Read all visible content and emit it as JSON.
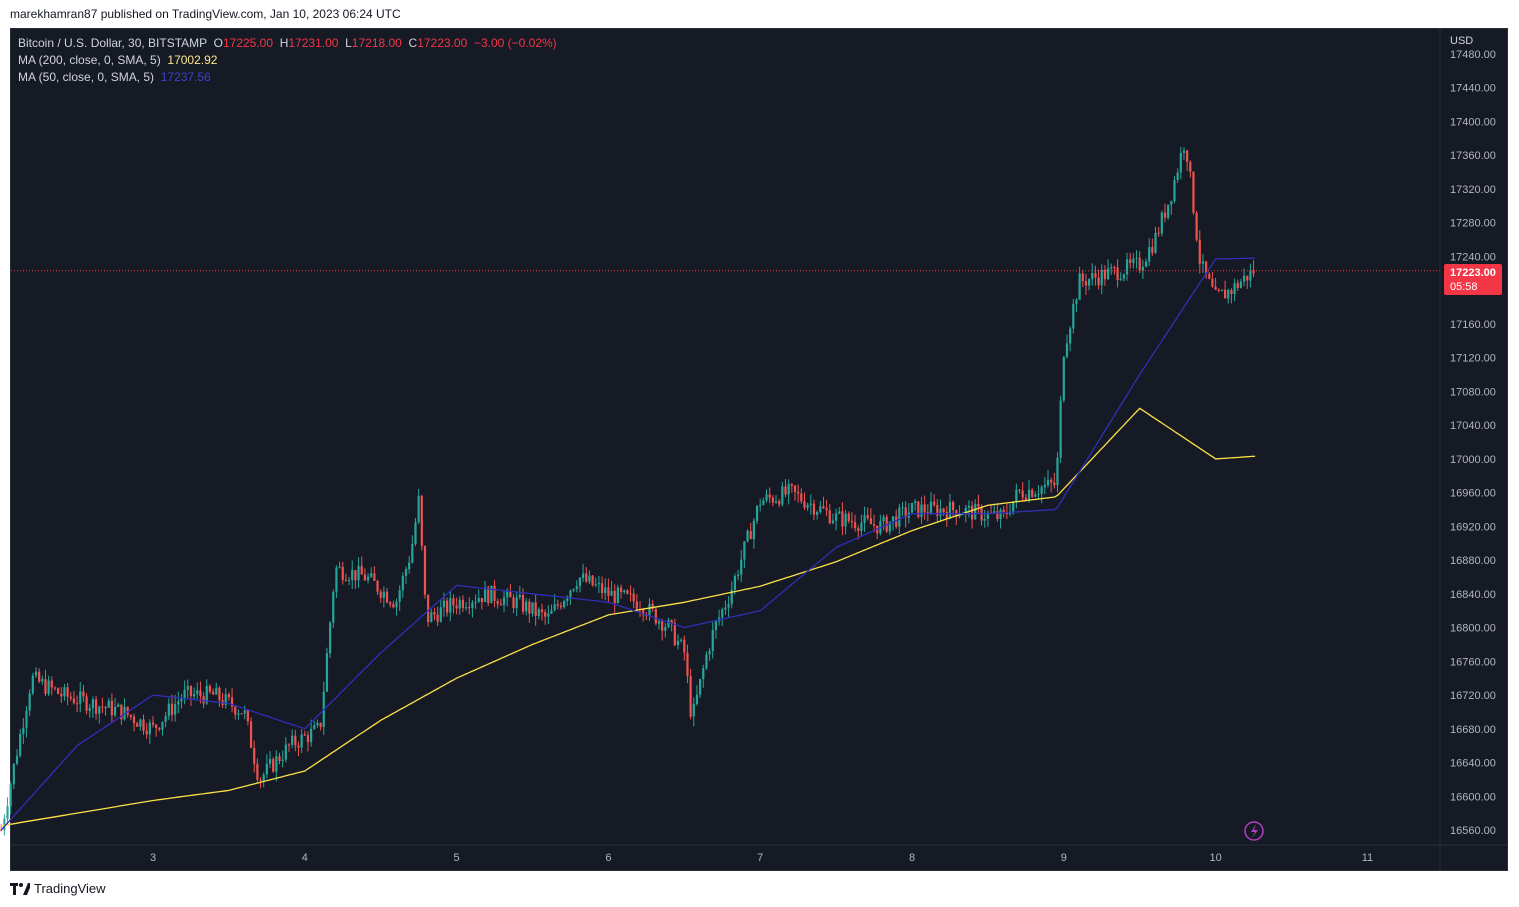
{
  "publish_line": "marekhamran87 published on TradingView.com, Jan 10, 2023 06:24 UTC",
  "legend": {
    "symbol": "Bitcoin / U.S. Dollar, 30, BITSTAMP",
    "o_label": "O",
    "o_value": "17225.00",
    "h_label": "H",
    "h_value": "17231.00",
    "l_label": "L",
    "l_value": "17218.00",
    "c_label": "C",
    "c_value": "17223.00",
    "change": "−3.00 (−0.02%)",
    "ma200_label": "MA (200, close, 0, SMA, 5)",
    "ma200_value": "17002.92",
    "ma50_label": "MA (50, close, 0, SMA, 5)",
    "ma50_value": "17237.56"
  },
  "price_badge": {
    "price": "17223.00",
    "countdown": "05:58"
  },
  "currency": "USD",
  "footer_brand": "TradingView",
  "colors": {
    "up": "#26a69a",
    "down": "#ef5350",
    "ma200": "#fde047",
    "ma50": "#2f2fb8",
    "background": "#161a25",
    "badge": "#f23645"
  },
  "icons": [
    "lightning-icon",
    "tradingview-logo-icon"
  ],
  "chart_data": {
    "type": "candlestick",
    "title": "Bitcoin / U.S. Dollar, 30, BITSTAMP",
    "ylabel": "USD",
    "ylim": [
      16540,
      17500
    ],
    "y_ticks": [
      "16560.00",
      "16600.00",
      "16640.00",
      "16680.00",
      "16720.00",
      "16760.00",
      "16800.00",
      "16840.00",
      "16880.00",
      "16920.00",
      "16960.00",
      "17000.00",
      "17040.00",
      "17080.00",
      "17120.00",
      "17160.00",
      "17200.00",
      "17240.00",
      "17280.00",
      "17320.00",
      "17360.00",
      "17400.00",
      "17440.00",
      "17480.00"
    ],
    "x_ticks": [
      "3",
      "4",
      "5",
      "6",
      "7",
      "8",
      "9",
      "10",
      "11"
    ],
    "last_price": 17223,
    "series": [
      {
        "name": "MA (200, close, 0, SMA, 5)",
        "day": [
          2.0,
          2.5,
          3.0,
          3.5,
          4.0,
          4.5,
          5.0,
          5.5,
          6.0,
          6.5,
          7.0,
          7.5,
          8.0,
          8.5,
          8.95,
          9.5,
          10.0,
          10.25
        ],
        "values": [
          16565,
          16580,
          16595,
          16607,
          16630,
          16690,
          16740,
          16780,
          16815,
          16830,
          16849,
          16878,
          16915,
          16945,
          16955,
          17060,
          17000,
          17003
        ]
      },
      {
        "name": "MA (50, close, 0, SMA, 5)",
        "day": [
          2.0,
          2.5,
          3.0,
          3.5,
          4.0,
          4.5,
          5.0,
          5.5,
          6.0,
          6.5,
          7.0,
          7.5,
          8.0,
          8.5,
          8.95,
          9.5,
          10.0,
          10.25
        ],
        "values": [
          16560,
          16660,
          16720,
          16710,
          16680,
          16770,
          16850,
          16840,
          16830,
          16800,
          16820,
          16895,
          16935,
          16935,
          16940,
          17100,
          17237,
          17238
        ]
      },
      {
        "name": "candles_close",
        "day": [
          2.0,
          2.2,
          2.4,
          2.6,
          2.8,
          3.0,
          3.2,
          3.4,
          3.6,
          3.7,
          3.9,
          4.1,
          4.2,
          4.4,
          4.6,
          4.7,
          4.75,
          4.8,
          5.0,
          5.2,
          5.4,
          5.6,
          5.8,
          6.0,
          6.2,
          6.4,
          6.5,
          6.55,
          6.65,
          6.7,
          6.8,
          7.0,
          7.2,
          7.5,
          7.8,
          8.0,
          8.3,
          8.6,
          8.7,
          8.95,
          9.0,
          9.1,
          9.3,
          9.5,
          9.6,
          9.7,
          9.8,
          9.9,
          10.0,
          10.1,
          10.25
        ],
        "values": [
          16560,
          16740,
          16720,
          16710,
          16700,
          16680,
          16720,
          16720,
          16700,
          16620,
          16660,
          16680,
          16870,
          16860,
          16830,
          16890,
          16950,
          16810,
          16830,
          16840,
          16830,
          16810,
          16860,
          16840,
          16830,
          16800,
          16770,
          16690,
          16770,
          16800,
          16840,
          16950,
          16960,
          16930,
          16920,
          16940,
          16940,
          16930,
          16960,
          16970,
          17130,
          17210,
          17220,
          17230,
          17260,
          17310,
          17380,
          17230,
          17190,
          17200,
          17223
        ]
      }
    ]
  }
}
